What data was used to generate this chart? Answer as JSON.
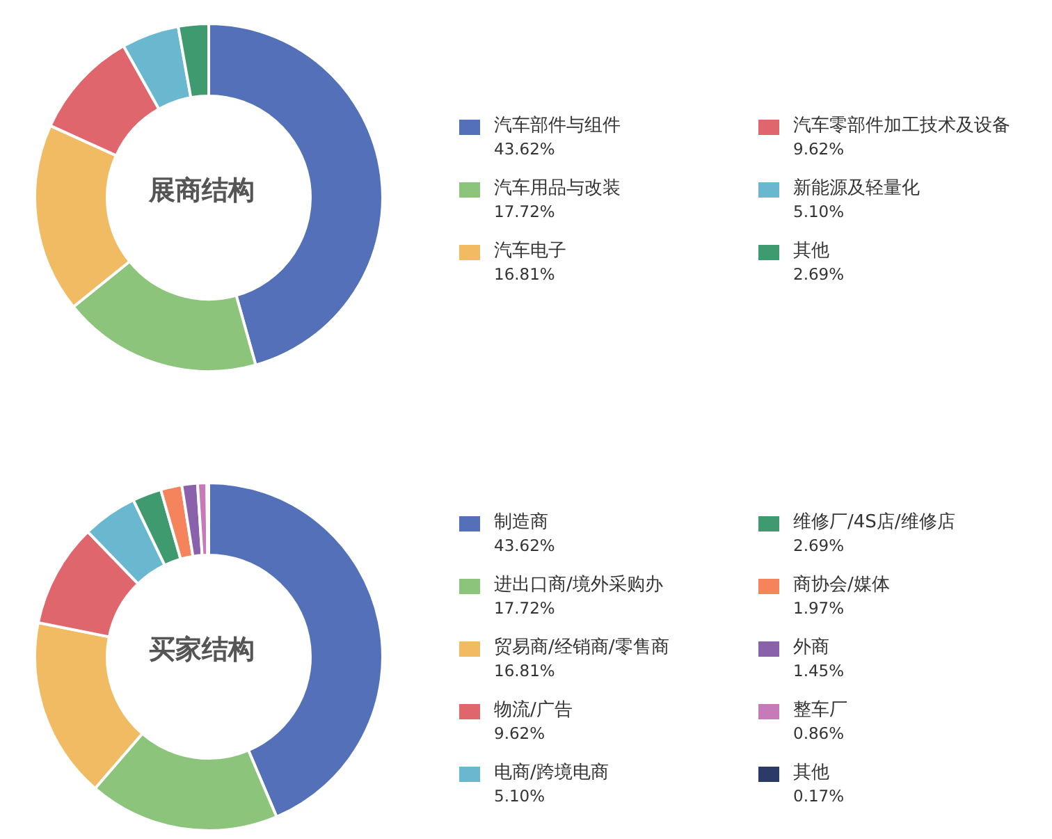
{
  "chart_data": [
    {
      "type": "donut",
      "title": "展商结构",
      "categories": [
        "汽车部件与组件",
        "汽车用品与改装",
        "汽车电子",
        "汽车零部件加工技术及设备",
        "新能源及轻量化",
        "其他"
      ],
      "values": [
        43.62,
        17.72,
        16.81,
        9.62,
        5.1,
        2.69
      ],
      "value_labels": [
        "43.62%",
        "17.72%",
        "16.81%",
        "9.62%",
        "5.10%",
        "2.69%"
      ],
      "colors": [
        "#5470b8",
        "#8bc47a",
        "#f0bb62",
        "#e0666d",
        "#6ab8cf",
        "#3f9a70"
      ],
      "legend": "right"
    },
    {
      "type": "donut",
      "title": "买家结构",
      "categories": [
        "制造商",
        "进出口商/境外采购办",
        "贸易商/经销商/零售商",
        "物流/广告",
        "电商/跨境电商",
        "维修厂/4S店/维修店",
        "商协会/媒体",
        "外商",
        "整车厂",
        "其他"
      ],
      "values": [
        43.62,
        17.72,
        16.81,
        9.62,
        5.1,
        2.69,
        1.97,
        1.45,
        0.86,
        0.17
      ],
      "value_labels": [
        "43.62%",
        "17.72%",
        "16.81%",
        "9.62%",
        "5.10%",
        "2.69%",
        "1.97%",
        "1.45%",
        "0.86%",
        "0.17%"
      ],
      "colors": [
        "#5470b8",
        "#8bc47a",
        "#f0bb62",
        "#e0666d",
        "#6ab8cf",
        "#3f9a70",
        "#f5845c",
        "#8a62ac",
        "#c77ab8",
        "#2b3a67"
      ],
      "legend": "right"
    }
  ]
}
